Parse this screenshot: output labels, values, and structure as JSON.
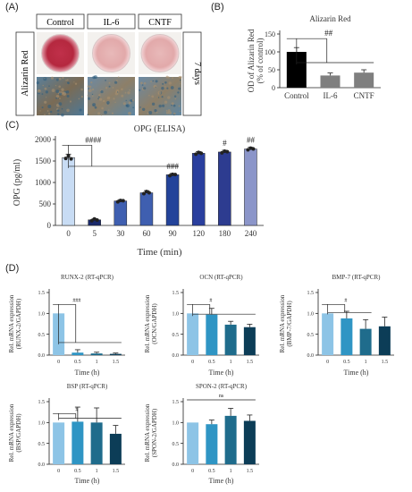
{
  "panels": {
    "A": {
      "letter": "(A)",
      "column_labels": [
        "Control",
        "IL-6",
        "CNTF"
      ],
      "row_label": "Alizarin Red",
      "duration_label": "7 days"
    },
    "B": {
      "letter": "(B)"
    },
    "C": {
      "letter": "(C)"
    },
    "D": {
      "letter": "(D)"
    }
  },
  "chart_data": [
    {
      "id": "B",
      "type": "bar",
      "title": "Alizarin Red",
      "ylabel": "OD of Alizarin Red\n(% of control)",
      "xlabel": "",
      "categories": [
        "Control",
        "IL-6",
        "CNTF"
      ],
      "values": [
        100,
        34,
        42
      ],
      "errors": [
        12,
        7,
        8
      ],
      "ylim": [
        0,
        150
      ],
      "yticks": [
        0,
        50,
        100,
        150
      ],
      "colors": [
        "#000000",
        "#7f7f7f",
        "#7f7f7f"
      ],
      "annotations": [
        {
          "text": "##",
          "from": 0,
          "to": [
            1,
            2
          ]
        }
      ]
    },
    {
      "id": "C",
      "type": "bar",
      "title": "OPG (ELISA)",
      "ylabel": "OPG (pg/ml)",
      "xlabel": "Time (min)",
      "categories": [
        "0",
        "5",
        "30",
        "60",
        "90",
        "120",
        "180",
        "240"
      ],
      "values": [
        1580,
        130,
        570,
        760,
        1180,
        1680,
        1710,
        1780
      ],
      "errors": [
        80,
        30,
        30,
        50,
        30,
        40,
        40,
        40
      ],
      "ylim": [
        0,
        2000
      ],
      "yticks": [
        0,
        500,
        1000,
        1500,
        2000
      ],
      "colors": [
        "#c8dcf4",
        "#1a2a6c",
        "#3f5fb0",
        "#3f5fb0",
        "#23439a",
        "#2a3f9e",
        "#2d3c90",
        "#8b95c9"
      ],
      "points": [
        [
          1560,
          1620,
          1550
        ],
        [
          110,
          150,
          125
        ],
        [
          550,
          580,
          575
        ],
        [
          740,
          790,
          760
        ],
        [
          1160,
          1190,
          1185
        ],
        [
          1660,
          1700,
          1680
        ],
        [
          1690,
          1730,
          1715
        ],
        [
          1760,
          1800,
          1780
        ]
      ],
      "annotations": [
        {
          "text": "####",
          "from": 0,
          "to": [
            1,
            2,
            3,
            4
          ]
        },
        {
          "text": "###",
          "at": 4
        },
        {
          "text": "#",
          "at": 6
        },
        {
          "text": "##",
          "at": 7
        }
      ]
    },
    {
      "id": "D1",
      "type": "bar",
      "title": "RUNX-2 (RT-qPCR)",
      "ylabel": "Rel. mRNA expression\n(RUNX-2/GAPDH)",
      "xlabel": "Time (h)",
      "categories": [
        "0",
        "0.5",
        "1",
        "1.5"
      ],
      "values": [
        1.0,
        0.06,
        0.04,
        0.03
      ],
      "errors": [
        0,
        0.07,
        0.03,
        0.02
      ],
      "ylim": [
        0,
        1.5
      ],
      "yticks": [
        0.0,
        0.5,
        1.0,
        1.5
      ],
      "colors": [
        "#8dc4e6",
        "#2f95c4",
        "#1f6c8c",
        "#0c3d57"
      ],
      "annotations": [
        {
          "text": "###",
          "from": 0,
          "to": [
            1,
            2,
            3
          ]
        }
      ]
    },
    {
      "id": "D2",
      "type": "bar",
      "title": "OCN (RT-qPCR)",
      "ylabel": "Rel. mRNA expression\n(OCN/GAPDH)",
      "xlabel": "Time (h)",
      "categories": [
        "0",
        "0.5",
        "1",
        "1.5"
      ],
      "values": [
        1.0,
        0.97,
        0.73,
        0.67
      ],
      "errors": [
        0,
        0.15,
        0.08,
        0.07
      ],
      "ylim": [
        0,
        1.5
      ],
      "yticks": [
        0.0,
        0.5,
        1.0,
        1.5
      ],
      "colors": [
        "#8dc4e6",
        "#2f95c4",
        "#1f6c8c",
        "#0c3d57"
      ],
      "annotations": [
        {
          "text": "#",
          "from": 0,
          "to": [
            2,
            3
          ]
        }
      ]
    },
    {
      "id": "D3",
      "type": "bar",
      "title": "BMP-7 (RT-qPCR)",
      "ylabel": "Rel. mRNA expression\n(BMP-7/GAPDH)",
      "xlabel": "Time (h)",
      "categories": [
        "0",
        "0.5",
        "1",
        "1.5"
      ],
      "values": [
        1.0,
        0.88,
        0.63,
        0.69
      ],
      "errors": [
        0,
        0.17,
        0.22,
        0.22
      ],
      "ylim": [
        0,
        1.5
      ],
      "yticks": [
        0.0,
        0.5,
        1.0,
        1.5
      ],
      "colors": [
        "#8dc4e6",
        "#2f95c4",
        "#1f6c8c",
        "#0c3d57"
      ],
      "annotations": [
        {
          "text": "#",
          "from": 0,
          "to": [
            2
          ]
        }
      ]
    },
    {
      "id": "D4",
      "type": "bar",
      "title": "BSP (RT-qPCR)",
      "ylabel": "Rel. mRNA expression\n(BSP/GAPDH)",
      "xlabel": "Time (h)",
      "categories": [
        "0",
        "0.5",
        "1",
        "1.5"
      ],
      "values": [
        1.0,
        1.02,
        1.0,
        0.73
      ],
      "errors": [
        0,
        0.35,
        0.35,
        0.2
      ],
      "ylim": [
        0,
        1.5
      ],
      "yticks": [
        0.0,
        0.5,
        1.0,
        1.5
      ],
      "colors": [
        "#8dc4e6",
        "#2f95c4",
        "#1f6c8c",
        "#0c3d57"
      ],
      "annotations": [
        {
          "text": "#",
          "from": 0,
          "to": [
            3
          ]
        }
      ]
    },
    {
      "id": "D5",
      "type": "bar",
      "title": "SPON-2 (RT-qPCR)",
      "ylabel": "Rel. mRNA expression\n(SPON-2/GAPDH)",
      "xlabel": "Time (h)",
      "categories": [
        "0",
        "0.5",
        "1",
        "1.5"
      ],
      "values": [
        1.0,
        0.96,
        1.16,
        1.04
      ],
      "errors": [
        0,
        0.1,
        0.18,
        0.14
      ],
      "ylim": [
        0,
        1.5
      ],
      "yticks": [
        0.0,
        0.5,
        1.0,
        1.5
      ],
      "colors": [
        "#8dc4e6",
        "#2f95c4",
        "#1f6c8c",
        "#0c3d57"
      ],
      "annotations": [
        {
          "text": "ns",
          "line": [
            0,
            3
          ]
        }
      ]
    }
  ]
}
